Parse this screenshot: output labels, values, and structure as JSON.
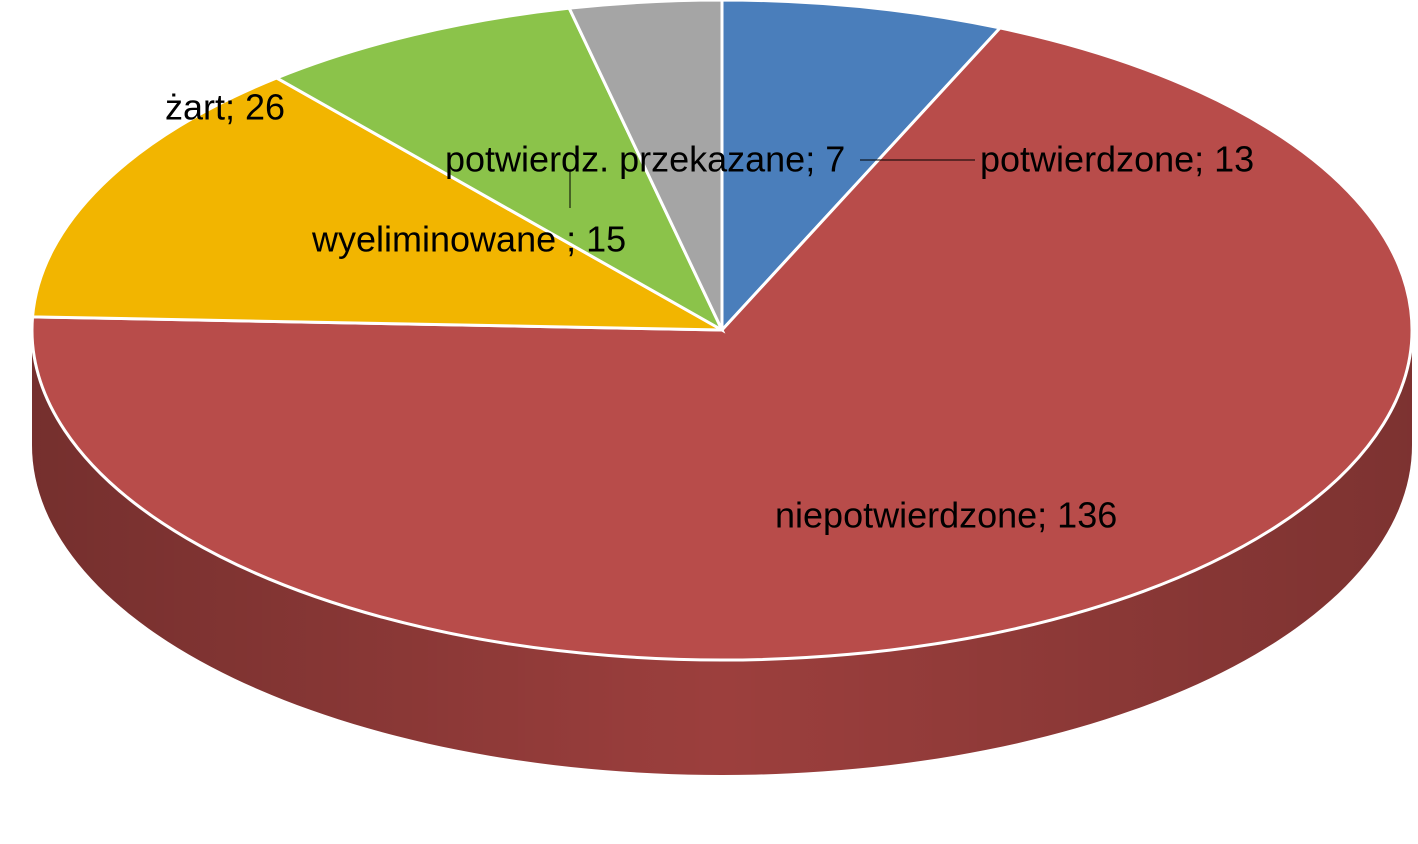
{
  "chart_data": {
    "type": "pie",
    "values": [
      13,
      136,
      26,
      15,
      7
    ],
    "value_labels": [
      "potwierdzone; 13",
      "niepotwierdzone; 136",
      "żart; 26",
      "wyeliminowane ; 15",
      "potwierdz. przekazane; 7"
    ],
    "colors": [
      "#4a7ebb",
      "#b84c4a",
      "#f2b500",
      "#8bc34a",
      "#a5a5a5"
    ],
    "side_colors": [
      "#3a6aa0",
      "#9c3f3d",
      "#d49e00",
      "#73a83d",
      "#8a8a8a"
    ]
  }
}
